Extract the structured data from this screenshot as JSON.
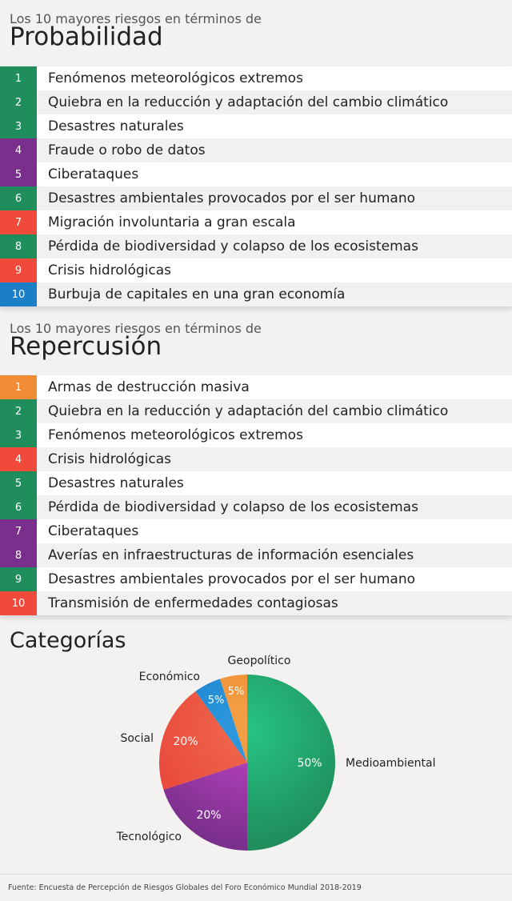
{
  "colors": {
    "medioambiental": "#1f8e5c",
    "tecnologico": "#7a2f8c",
    "social": "#ef4a3c",
    "economico": "#1a7fc7",
    "geopolitico": "#ef8c35"
  },
  "probabilidad": {
    "subtitle": "Los 10 mayores riesgos en términos de",
    "title": "Probabilidad",
    "items": [
      {
        "num": "1",
        "label": "Fenómenos meteorológicos extremos",
        "category": "medioambiental"
      },
      {
        "num": "2",
        "label": "Quiebra en la reducción y adaptación del cambio climático",
        "category": "medioambiental"
      },
      {
        "num": "3",
        "label": "Desastres naturales",
        "category": "medioambiental"
      },
      {
        "num": "4",
        "label": " Fraude o robo de datos",
        "category": "tecnologico"
      },
      {
        "num": "5",
        "label": "Ciberataques",
        "category": "tecnologico"
      },
      {
        "num": "6",
        "label": "Desastres ambientales provocados por el ser humano",
        "category": "medioambiental"
      },
      {
        "num": "7",
        "label": "Migración involuntaria a gran escala",
        "category": "social"
      },
      {
        "num": "8",
        "label": "Pérdida de biodiversidad y colapso de los ecosistemas",
        "category": "medioambiental"
      },
      {
        "num": "9",
        "label": "Crisis hidrológicas",
        "category": "social"
      },
      {
        "num": "10",
        "label": "Burbuja de capitales en una gran economía",
        "category": "economico"
      }
    ]
  },
  "repercusion": {
    "subtitle": "Los 10 mayores riesgos en términos de",
    "title": "Repercusión",
    "items": [
      {
        "num": "1",
        "label": "Armas de destrucción masiva",
        "category": "geopolitico"
      },
      {
        "num": "2",
        "label": "Quiebra en la reducción y adaptación del cambio climático",
        "category": "medioambiental"
      },
      {
        "num": "3",
        "label": "Fenómenos meteorológicos extremos",
        "category": "medioambiental"
      },
      {
        "num": "4",
        "label": "Crisis hidrológicas",
        "category": "social"
      },
      {
        "num": "5",
        "label": "Desastres naturales",
        "category": "medioambiental"
      },
      {
        "num": "6",
        "label": "Pérdida de biodiversidad y colapso de los ecosistemas",
        "category": "medioambiental"
      },
      {
        "num": "7",
        "label": "Ciberataques",
        "category": "tecnologico"
      },
      {
        "num": "8",
        "label": "Averías en infraestructuras de información esenciales",
        "category": "tecnologico"
      },
      {
        "num": "9",
        "label": "Desastres ambientales provocados por el ser humano",
        "category": "medioambiental"
      },
      {
        "num": "10",
        "label": "Transmisión de enfermedades contagiosas",
        "category": "social"
      }
    ]
  },
  "chart_data": {
    "type": "pie",
    "title": "Categorías",
    "slices": [
      {
        "name": "Medioambiental",
        "value": 50,
        "label": "50%",
        "color": "#1f8e5c",
        "color_light": "#27c485"
      },
      {
        "name": "Tecnológico",
        "value": 20,
        "label": "20%",
        "color": "#7a2f8c",
        "color_light": "#c045c4"
      },
      {
        "name": "Social",
        "value": 20,
        "label": "20%",
        "color": "#e8453a",
        "color_light": "#f06a4d"
      },
      {
        "name": "Económico",
        "value": 5,
        "label": "5%",
        "color": "#1a7fc7",
        "color_light": "#2f9be0"
      },
      {
        "name": "Geopolítico",
        "value": 5,
        "label": "5%",
        "color": "#ef8c35",
        "color_light": "#f4a046"
      }
    ]
  },
  "footer": {
    "source": "Fuente: Encuesta de Percepción de Riesgos Globales del Foro Económico Mundial 2018-2019"
  }
}
